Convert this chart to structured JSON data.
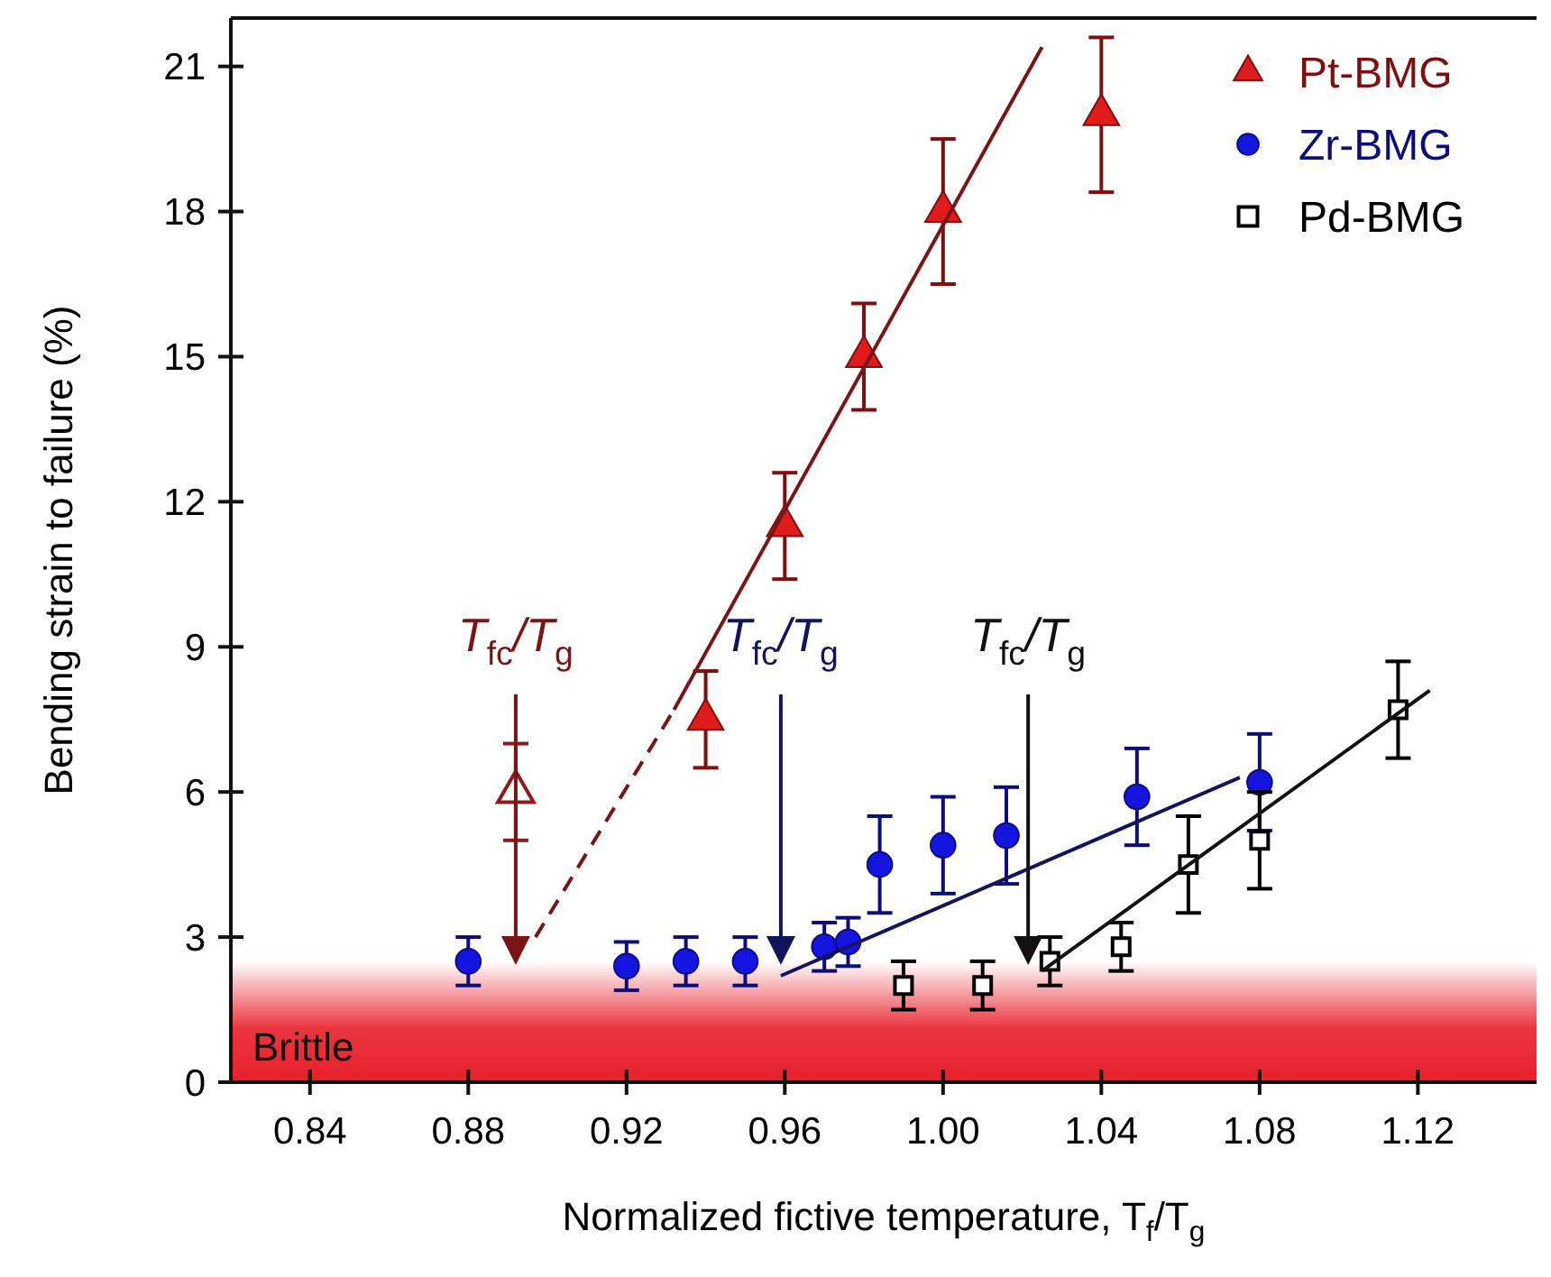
{
  "chart_data": {
    "type": "scatter",
    "xlabel": "Normalized fictive temperature, T$_{f}$/T$_{g}$",
    "ylabel": "Bending strain to failure (%)",
    "xlim": [
      0.82,
      1.15
    ],
    "ylim": [
      0,
      22
    ],
    "xticks": [
      {
        "value": 0.84,
        "label": "0.84"
      },
      {
        "value": 0.88,
        "label": "0.88"
      },
      {
        "value": 0.92,
        "label": "0.92"
      },
      {
        "value": 0.96,
        "label": "0.96"
      },
      {
        "value": 1.0,
        "label": "1.00"
      },
      {
        "value": 1.04,
        "label": "1.04"
      },
      {
        "value": 1.08,
        "label": "1.08"
      },
      {
        "value": 1.12,
        "label": "1.12"
      }
    ],
    "yticks": [
      0,
      3,
      6,
      9,
      12,
      15,
      18,
      21
    ],
    "grid": false,
    "legend": "top right",
    "series": [
      {
        "name": "Pt-BMG",
        "marker": "triangle",
        "color": "#e01b1b",
        "x": [
          0.94,
          0.96,
          0.98,
          1.0,
          1.04
        ],
        "values": [
          7.5,
          11.5,
          15.0,
          18.0,
          20.0
        ],
        "errors": [
          1.0,
          1.1,
          1.1,
          1.5,
          1.6
        ]
      },
      {
        "name": "Zr-BMG",
        "marker": "circle",
        "color": "#1515e0",
        "x": [
          0.88,
          0.92,
          0.935,
          0.95,
          0.97,
          0.976,
          0.984,
          1.0,
          1.016,
          1.049,
          1.08
        ],
        "values": [
          2.5,
          2.4,
          2.5,
          2.5,
          2.8,
          2.9,
          4.5,
          4.9,
          5.1,
          5.9,
          6.2
        ],
        "errors": [
          0.5,
          0.5,
          0.5,
          0.5,
          0.5,
          0.5,
          1.0,
          1.0,
          1.0,
          1.0,
          1.0
        ]
      },
      {
        "name": "Pd-BMG",
        "marker": "square-open",
        "color": "#000000",
        "x": [
          0.99,
          1.01,
          1.027,
          1.045,
          1.062,
          1.08,
          1.115
        ],
        "values": [
          2.0,
          2.0,
          2.5,
          2.8,
          4.5,
          5.0,
          7.7
        ],
        "errors": [
          0.5,
          0.5,
          0.5,
          0.5,
          1.0,
          1.0,
          1.0
        ]
      },
      {
        "marker": "triangle-open",
        "color": "#8b1a1a",
        "x": [
          0.892
        ],
        "values": [
          6.0
        ],
        "errors": [
          1.0
        ]
      },
      {
        "type": "line",
        "color": "#7a1515",
        "line_style": "dashed",
        "x": [
          0.897,
          0.932
        ],
        "values": [
          3.0,
          7.7
        ]
      },
      {
        "type": "line",
        "color": "#7a1515",
        "line_style": "solid",
        "x": [
          0.932,
          1.025
        ],
        "values": [
          7.7,
          21.4
        ]
      },
      {
        "type": "line",
        "color": "#14145e",
        "line_style": "solid",
        "x": [
          0.959,
          1.075
        ],
        "values": [
          2.2,
          6.3
        ]
      },
      {
        "type": "line",
        "color": "#111111",
        "line_style": "solid",
        "x": [
          1.025,
          1.123
        ],
        "values": [
          2.3,
          8.1
        ]
      }
    ],
    "bands": [
      {
        "axis": "y",
        "from": 0,
        "to": 2.5,
        "label": "Brittle",
        "color": "#e8202a"
      }
    ],
    "ref_lines": [
      {
        "axis": "x",
        "value": 0.892,
        "label": "T$_{fc}$/T$_{g}$",
        "color": "#7a1515"
      },
      {
        "axis": "x",
        "value": 0.959,
        "label": "T$_{fc}$/T$_{g}$",
        "color": "#14145e"
      },
      {
        "axis": "x",
        "value": 1.0215,
        "label": "T$_{fc}$/T$_{g}$",
        "color": "#111111"
      }
    ]
  }
}
